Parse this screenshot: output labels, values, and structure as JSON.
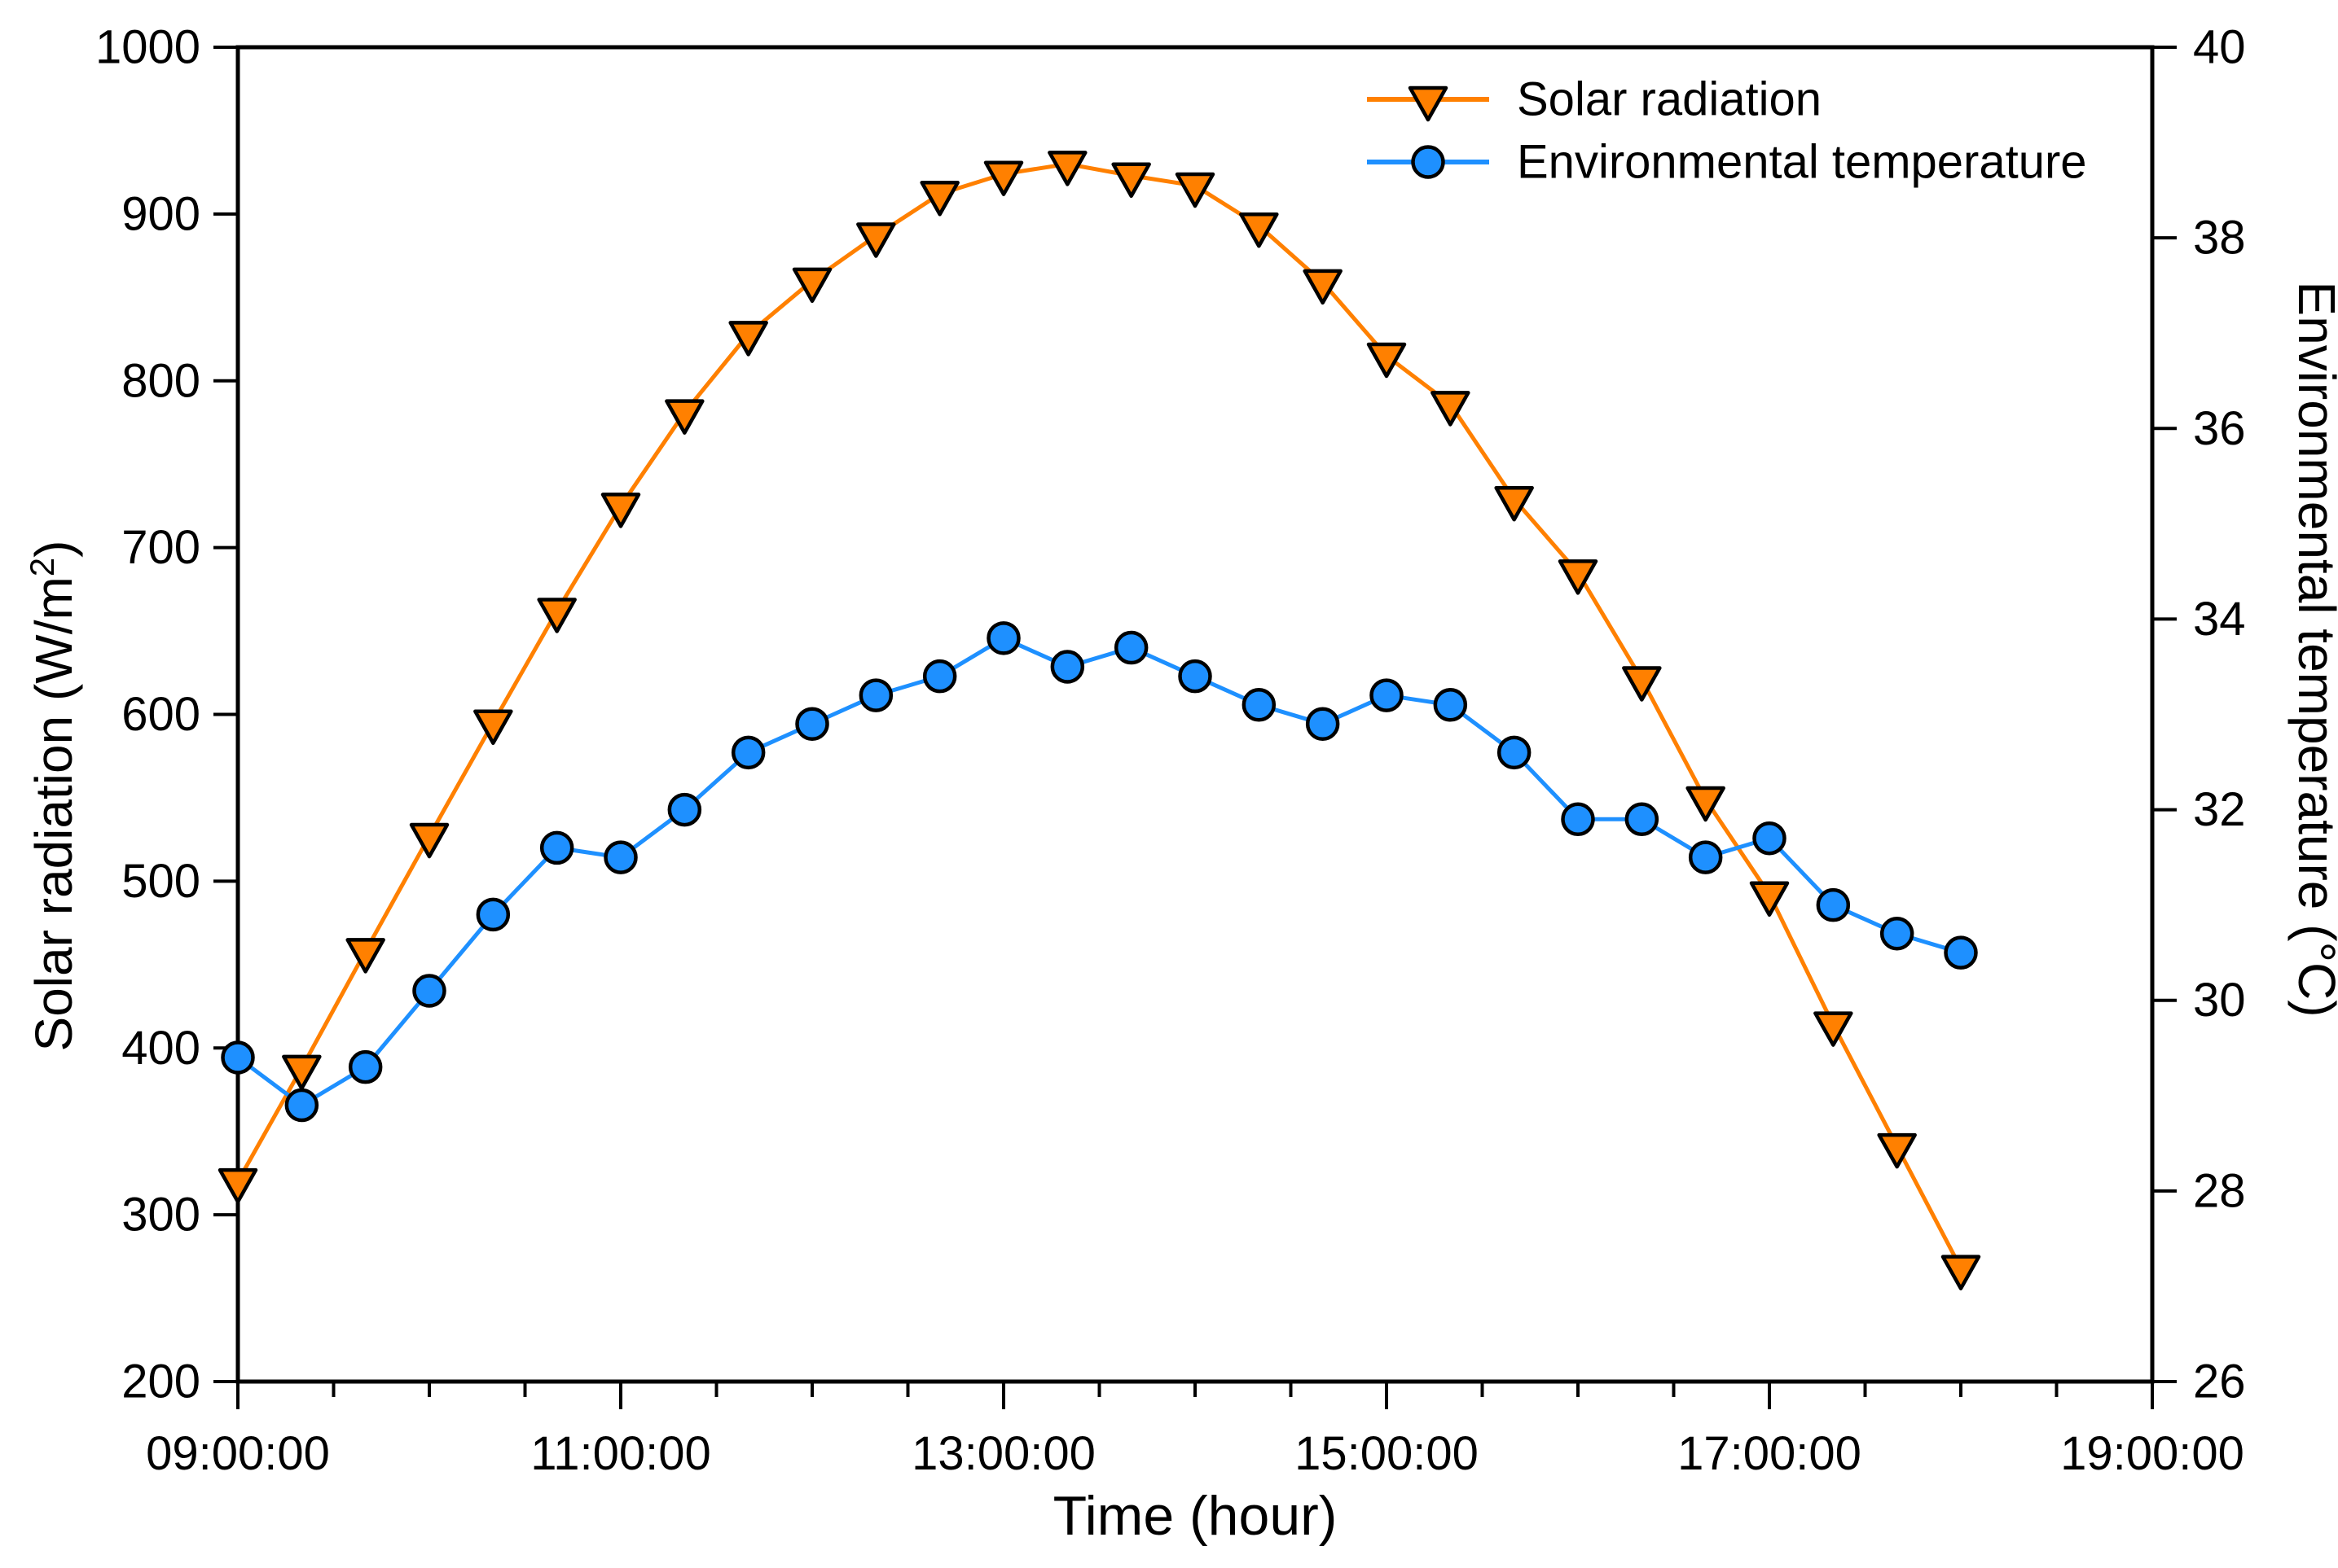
{
  "chart_data": {
    "type": "line",
    "title": "",
    "layout": {
      "grid": false,
      "legend_position": "top-right-inside",
      "frame": true,
      "background": "#ffffff",
      "axis_color": "#000000"
    },
    "x_axis": {
      "label": "Time (hour)",
      "range_hours": [
        9,
        19
      ],
      "major_tick_labels": [
        "09:00:00",
        "11:00:00",
        "13:00:00",
        "15:00:00",
        "17:00:00",
        "19:00:00"
      ],
      "minor_tick_interval_minutes": 30
    },
    "y_left": {
      "label_prefix": "Solar radiation (W/m",
      "label_sup": "2",
      "label_suffix": ")",
      "min": 200,
      "max": 1000,
      "tick_step": 100,
      "tick_labels": [
        "200",
        "300",
        "400",
        "500",
        "600",
        "700",
        "800",
        "900",
        "1000"
      ]
    },
    "y_right": {
      "label": "Environmental temperature (°C)",
      "min": 26,
      "max": 40,
      "tick_step": 2,
      "tick_labels": [
        "26",
        "28",
        "30",
        "32",
        "34",
        "36",
        "38",
        "40"
      ]
    },
    "categories": [
      "09:00",
      "09:20",
      "09:40",
      "10:00",
      "10:20",
      "10:40",
      "11:00",
      "11:20",
      "11:40",
      "12:00",
      "12:20",
      "12:40",
      "13:00",
      "13:20",
      "13:40",
      "14:00",
      "14:20",
      "14:40",
      "15:00",
      "15:20",
      "15:40",
      "16:00",
      "16:20",
      "16:40",
      "17:00",
      "17:20",
      "17:40",
      "18:00"
    ],
    "series": [
      {
        "name": "Solar radiation",
        "axis": "left",
        "unit": "W/m2",
        "color": "#FF8000",
        "marker": "triangle-down",
        "marker_fill": "#FF8000",
        "marker_stroke": "#000000",
        "values": [
          320,
          388,
          458,
          527,
          595,
          662,
          725,
          781,
          828,
          860,
          887,
          912,
          924,
          930,
          923,
          917,
          893,
          859,
          815,
          786,
          729,
          685,
          621,
          549,
          492,
          414,
          341,
          268
        ]
      },
      {
        "name": "Environmental temperature",
        "axis": "right",
        "unit": "°C",
        "color": "#1E90FF",
        "marker": "circle",
        "marker_fill": "#1E90FF",
        "marker_stroke": "#000000",
        "values": [
          29.4,
          28.9,
          29.3,
          30.1,
          30.9,
          31.6,
          31.5,
          32.0,
          32.6,
          32.9,
          33.2,
          33.4,
          33.8,
          33.5,
          33.7,
          33.4,
          33.1,
          32.9,
          33.2,
          33.1,
          32.6,
          31.9,
          31.9,
          31.5,
          31.7,
          31.0,
          30.7,
          30.5
        ]
      }
    ],
    "legend": {
      "items": [
        "Solar radiation",
        "Environmental temperature"
      ]
    }
  }
}
